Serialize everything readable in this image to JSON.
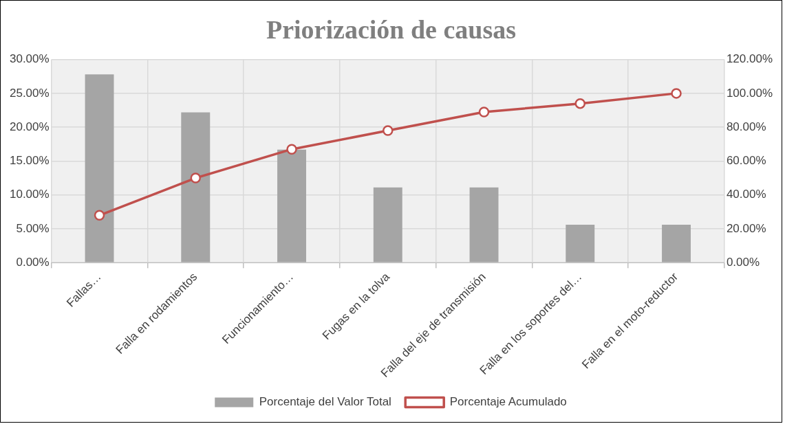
{
  "chart_data": {
    "type": "bar",
    "title": "Priorización de causas",
    "categories": [
      "Fallas…",
      "Falla en rodamientos",
      "Funcionamiento…",
      "Fugas en la tolva",
      "Falla del eje de transmisión",
      "Falla en los soportes del…",
      "Falla en el moto-reductor"
    ],
    "series": [
      {
        "name": "Porcentaje del Valor Total",
        "color": "#a5a5a5",
        "values": [
          27.8,
          22.2,
          16.7,
          11.1,
          11.1,
          5.6,
          5.6
        ]
      },
      {
        "name": "Porcentaje Acumulado",
        "type": "line",
        "axis": "y2",
        "color": "#c0504d",
        "values": [
          28,
          50,
          67,
          78,
          89,
          94,
          100
        ]
      }
    ],
    "ylim": [
      0,
      30
    ],
    "yticks": [
      {
        "value": 0,
        "label": "0.00%"
      },
      {
        "value": 5,
        "label": "5.00%"
      },
      {
        "value": 10,
        "label": "10.00%"
      },
      {
        "value": 15,
        "label": "15.00%"
      },
      {
        "value": 20,
        "label": "20.00%"
      },
      {
        "value": 25,
        "label": "25.00%"
      },
      {
        "value": 30,
        "label": "30.00%"
      }
    ],
    "y2lim": [
      0,
      120
    ],
    "y2ticks": [
      {
        "value": 0,
        "label": "0.00%"
      },
      {
        "value": 20,
        "label": "20.00%"
      },
      {
        "value": 40,
        "label": "40.00%"
      },
      {
        "value": 60,
        "label": "60.00%"
      },
      {
        "value": 80,
        "label": "80.00%"
      },
      {
        "value": 100,
        "label": "100.00%"
      },
      {
        "value": 120,
        "label": "120.00%"
      }
    ],
    "grid": true,
    "legend": "bottom",
    "marker": "circle",
    "line_style": "solid"
  }
}
